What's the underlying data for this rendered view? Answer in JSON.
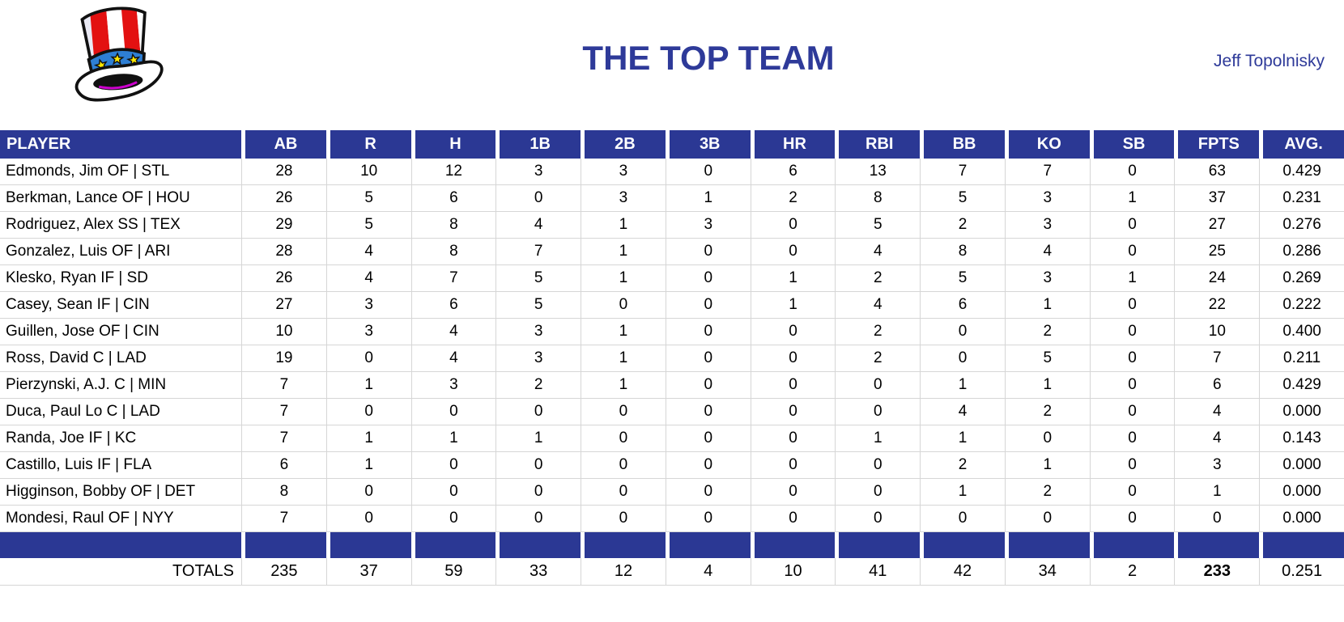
{
  "page": {
    "title": "THE TOP TEAM",
    "author": "Jeff Topolnisky",
    "logo": "uncle-sam-hat"
  },
  "colors": {
    "header_blue": "#2b3894",
    "title_blue": "#2e3a99",
    "grid_line": "#d6d6d6",
    "hat_red": "#e31111",
    "hat_band_blue": "#2e7fd4",
    "hat_star_yellow": "#ffe800",
    "hat_purple": "#cc00cc"
  },
  "table": {
    "columns": [
      "PLAYER",
      "AB",
      "R",
      "H",
      "1B",
      "2B",
      "3B",
      "HR",
      "RBI",
      "BB",
      "KO",
      "SB",
      "FPTS",
      "AVG."
    ],
    "rows": [
      {
        "player": "Edmonds, Jim OF | STL",
        "stats": [
          "28",
          "10",
          "12",
          "3",
          "3",
          "0",
          "6",
          "13",
          "7",
          "7",
          "0",
          "63",
          "0.429"
        ]
      },
      {
        "player": "Berkman, Lance OF | HOU",
        "stats": [
          "26",
          "5",
          "6",
          "0",
          "3",
          "1",
          "2",
          "8",
          "5",
          "3",
          "1",
          "37",
          "0.231"
        ]
      },
      {
        "player": "Rodriguez, Alex SS | TEX",
        "stats": [
          "29",
          "5",
          "8",
          "4",
          "1",
          "3",
          "0",
          "5",
          "2",
          "3",
          "0",
          "27",
          "0.276"
        ]
      },
      {
        "player": "Gonzalez, Luis OF | ARI",
        "stats": [
          "28",
          "4",
          "8",
          "7",
          "1",
          "0",
          "0",
          "4",
          "8",
          "4",
          "0",
          "25",
          "0.286"
        ]
      },
      {
        "player": "Klesko, Ryan IF | SD",
        "stats": [
          "26",
          "4",
          "7",
          "5",
          "1",
          "0",
          "1",
          "2",
          "5",
          "3",
          "1",
          "24",
          "0.269"
        ]
      },
      {
        "player": "Casey, Sean IF | CIN",
        "stats": [
          "27",
          "3",
          "6",
          "5",
          "0",
          "0",
          "1",
          "4",
          "6",
          "1",
          "0",
          "22",
          "0.222"
        ]
      },
      {
        "player": "Guillen, Jose OF | CIN",
        "stats": [
          "10",
          "3",
          "4",
          "3",
          "1",
          "0",
          "0",
          "2",
          "0",
          "2",
          "0",
          "10",
          "0.400"
        ]
      },
      {
        "player": "Ross, David C | LAD",
        "stats": [
          "19",
          "0",
          "4",
          "3",
          "1",
          "0",
          "0",
          "2",
          "0",
          "5",
          "0",
          "7",
          "0.211"
        ]
      },
      {
        "player": "Pierzynski, A.J. C | MIN",
        "stats": [
          "7",
          "1",
          "3",
          "2",
          "1",
          "0",
          "0",
          "0",
          "1",
          "1",
          "0",
          "6",
          "0.429"
        ]
      },
      {
        "player": "Duca, Paul Lo C | LAD",
        "stats": [
          "7",
          "0",
          "0",
          "0",
          "0",
          "0",
          "0",
          "0",
          "4",
          "2",
          "0",
          "4",
          "0.000"
        ]
      },
      {
        "player": "Randa, Joe IF | KC",
        "stats": [
          "7",
          "1",
          "1",
          "1",
          "0",
          "0",
          "0",
          "1",
          "1",
          "0",
          "0",
          "4",
          "0.143"
        ]
      },
      {
        "player": "Castillo, Luis IF | FLA",
        "stats": [
          "6",
          "1",
          "0",
          "0",
          "0",
          "0",
          "0",
          "0",
          "2",
          "1",
          "0",
          "3",
          "0.000"
        ]
      },
      {
        "player": "Higginson, Bobby OF | DET",
        "stats": [
          "8",
          "0",
          "0",
          "0",
          "0",
          "0",
          "0",
          "0",
          "1",
          "2",
          "0",
          "1",
          "0.000"
        ]
      },
      {
        "player": "Mondesi, Raul OF | NYY",
        "stats": [
          "7",
          "0",
          "0",
          "0",
          "0",
          "0",
          "0",
          "0",
          "0",
          "0",
          "0",
          "0",
          "0.000"
        ]
      }
    ],
    "totals": {
      "label": "TOTALS",
      "stats": [
        "235",
        "37",
        "59",
        "33",
        "12",
        "4",
        "10",
        "41",
        "42",
        "34",
        "2",
        "233",
        "0.251"
      ],
      "bold_index": 11
    }
  }
}
